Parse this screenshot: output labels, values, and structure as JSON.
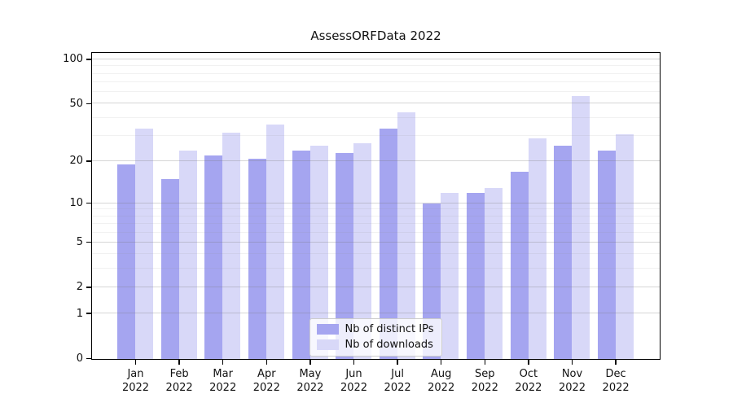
{
  "title": "AssessORFData 2022",
  "colors": {
    "distinct_ips_bar": "#a5a5f0",
    "downloads_bar": "#d8d8f8",
    "major_grid": "#d9d9d9",
    "minor_grid": "#efefef",
    "spine": "#000000",
    "legend_border": "#cccccc"
  },
  "chart_data": {
    "type": "bar",
    "title": "AssessORFData 2022",
    "categories": [
      "Jan 2022",
      "Feb 2022",
      "Mar 2022",
      "Apr 2022",
      "May 2022",
      "Jun 2022",
      "Jul 2022",
      "Aug 2022",
      "Sep 2022",
      "Oct 2022",
      "Nov 2022",
      "Dec 2022"
    ],
    "series": [
      {
        "name": "Nb of distinct IPs",
        "color": "#a5a5f0",
        "values": [
          19,
          15,
          22,
          21,
          24,
          23,
          34,
          10,
          12,
          17,
          26,
          24
        ]
      },
      {
        "name": "Nb of downloads",
        "color": "#d8d8f8",
        "values": [
          34,
          24,
          32,
          36,
          26,
          27,
          44,
          12,
          13,
          29,
          57,
          31
        ]
      }
    ],
    "y_scale": "log10(1+y)",
    "y_ticks": [
      100,
      50,
      20,
      10,
      5,
      2,
      1,
      0
    ],
    "y_minor_gridlines": [
      3,
      4,
      6,
      7,
      8,
      9,
      30,
      40,
      60,
      70,
      80,
      90
    ],
    "ylim": [
      0,
      110
    ],
    "xlabel": "",
    "ylabel": "",
    "grid": true,
    "legend_position": "lower center"
  }
}
